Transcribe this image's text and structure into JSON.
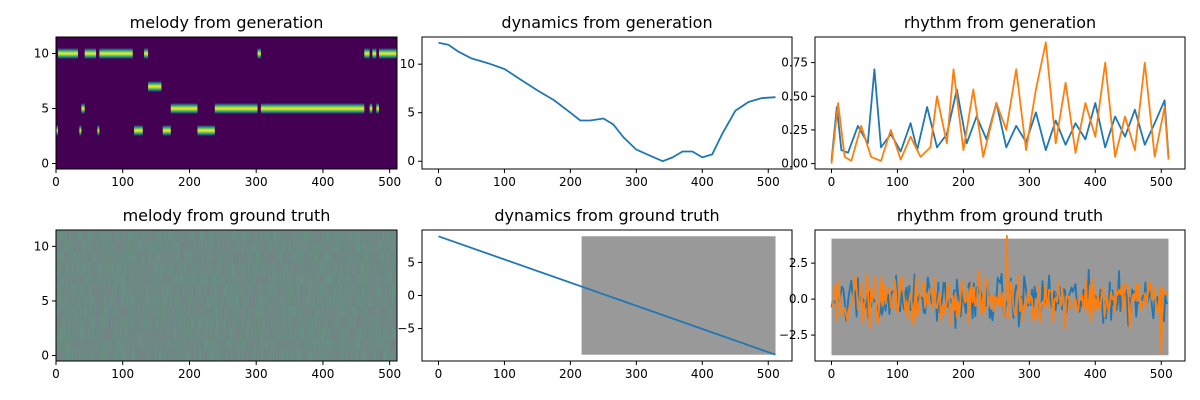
{
  "figure": {
    "colors": {
      "series1": "#1f77b4",
      "series2": "#ff7f0e",
      "shade": "#999999",
      "viridis_low": "#440154",
      "viridis_mid": "#21918c",
      "viridis_high": "#fde725",
      "noise_base": "#6e8a84"
    }
  },
  "chart_data": [
    {
      "id": "melody-generation",
      "type": "heatmap",
      "title": "melody from generation",
      "xlim": [
        0,
        511
      ],
      "ylim": [
        -0.5,
        11.5
      ],
      "xticks": [
        0,
        100,
        200,
        300,
        400,
        500
      ],
      "yticks": [
        0,
        5,
        10
      ],
      "grid": false,
      "segments": [
        {
          "x0": 0,
          "x1": 3,
          "pitch": 3
        },
        {
          "x0": 3,
          "x1": 33,
          "pitch": 10
        },
        {
          "x0": 35,
          "x1": 38,
          "pitch": 3
        },
        {
          "x0": 38,
          "x1": 43,
          "pitch": 5
        },
        {
          "x0": 43,
          "x1": 60,
          "pitch": 10
        },
        {
          "x0": 62,
          "x1": 65,
          "pitch": 3
        },
        {
          "x0": 65,
          "x1": 115,
          "pitch": 10
        },
        {
          "x0": 117,
          "x1": 130,
          "pitch": 3
        },
        {
          "x0": 132,
          "x1": 138,
          "pitch": 10
        },
        {
          "x0": 138,
          "x1": 158,
          "pitch": 7
        },
        {
          "x0": 160,
          "x1": 172,
          "pitch": 3
        },
        {
          "x0": 172,
          "x1": 212,
          "pitch": 5
        },
        {
          "x0": 212,
          "x1": 238,
          "pitch": 3
        },
        {
          "x0": 238,
          "x1": 302,
          "pitch": 5
        },
        {
          "x0": 302,
          "x1": 307,
          "pitch": 10
        },
        {
          "x0": 307,
          "x1": 462,
          "pitch": 5
        },
        {
          "x0": 462,
          "x1": 470,
          "pitch": 10
        },
        {
          "x0": 470,
          "x1": 474,
          "pitch": 5
        },
        {
          "x0": 474,
          "x1": 480,
          "pitch": 10
        },
        {
          "x0": 480,
          "x1": 484,
          "pitch": 5
        },
        {
          "x0": 484,
          "x1": 511,
          "pitch": 10
        }
      ]
    },
    {
      "id": "dynamics-generation",
      "type": "line",
      "title": "dynamics from generation",
      "xlim": [
        -25,
        536
      ],
      "ylim": [
        -0.8,
        12.8
      ],
      "xticks": [
        0,
        100,
        200,
        300,
        400,
        500
      ],
      "yticks": [
        0,
        5,
        10
      ],
      "grid": false,
      "series": [
        {
          "x": [
            0,
            15,
            30,
            50,
            75,
            100,
            125,
            150,
            175,
            200,
            215,
            230,
            250,
            265,
            280,
            300,
            320,
            340,
            355,
            370,
            385,
            400,
            415,
            430,
            450,
            470,
            490,
            511
          ],
          "y": [
            12.2,
            12.0,
            11.3,
            10.6,
            10.1,
            9.5,
            8.4,
            7.3,
            6.3,
            5.0,
            4.2,
            4.2,
            4.4,
            3.8,
            2.5,
            1.2,
            0.6,
            0.0,
            0.4,
            1.0,
            1.0,
            0.4,
            0.7,
            2.8,
            5.2,
            6.1,
            6.5,
            6.6
          ]
        }
      ]
    },
    {
      "id": "rhythm-generation",
      "type": "line",
      "title": "rhythm from generation",
      "xlim": [
        -25,
        536
      ],
      "ylim": [
        -0.04,
        0.94
      ],
      "xticks": [
        0,
        100,
        200,
        300,
        400,
        500
      ],
      "yticks": [
        0.0,
        0.25,
        0.5,
        0.75
      ],
      "tick_labels_y": [
        "0.00",
        "0.25",
        "0.50",
        "0.75"
      ],
      "grid": false,
      "series": [
        {
          "x": [
            0,
            8,
            15,
            25,
            40,
            55,
            65,
            75,
            90,
            105,
            120,
            130,
            145,
            160,
            175,
            190,
            205,
            220,
            235,
            250,
            265,
            280,
            295,
            310,
            325,
            340,
            355,
            370,
            385,
            400,
            415,
            430,
            445,
            460,
            475,
            490,
            505,
            511
          ],
          "y": [
            0.02,
            0.42,
            0.1,
            0.08,
            0.28,
            0.15,
            0.7,
            0.12,
            0.22,
            0.09,
            0.3,
            0.1,
            0.42,
            0.12,
            0.22,
            0.55,
            0.15,
            0.35,
            0.18,
            0.45,
            0.12,
            0.28,
            0.16,
            0.38,
            0.1,
            0.32,
            0.14,
            0.3,
            0.18,
            0.45,
            0.12,
            0.35,
            0.2,
            0.4,
            0.14,
            0.3,
            0.47,
            0.05
          ]
        },
        {
          "x": [
            0,
            10,
            20,
            30,
            45,
            60,
            75,
            90,
            105,
            120,
            135,
            150,
            160,
            175,
            185,
            200,
            215,
            230,
            250,
            265,
            280,
            295,
            310,
            325,
            340,
            355,
            370,
            385,
            400,
            415,
            430,
            445,
            460,
            475,
            490,
            505,
            511
          ],
          "y": [
            0.0,
            0.45,
            0.05,
            0.02,
            0.28,
            0.05,
            0.02,
            0.25,
            0.03,
            0.2,
            0.05,
            0.12,
            0.5,
            0.15,
            0.7,
            0.1,
            0.55,
            0.05,
            0.45,
            0.25,
            0.7,
            0.1,
            0.55,
            0.9,
            0.15,
            0.6,
            0.08,
            0.45,
            0.2,
            0.75,
            0.05,
            0.35,
            0.1,
            0.75,
            0.05,
            0.42,
            0.03
          ]
        }
      ]
    },
    {
      "id": "melody-ground-truth",
      "type": "heatmap",
      "title": "melody from ground truth",
      "xlim": [
        0,
        511
      ],
      "ylim": [
        -0.5,
        11.5
      ],
      "xticks": [
        0,
        100,
        200,
        300,
        400,
        500
      ],
      "yticks": [
        0,
        5,
        10
      ],
      "grid": false
    },
    {
      "id": "dynamics-ground-truth",
      "type": "line",
      "title": "dynamics from ground truth",
      "xlim": [
        -25,
        536
      ],
      "ylim": [
        -9.9,
        9.9
      ],
      "xticks": [
        0,
        100,
        200,
        300,
        400,
        500
      ],
      "yticks": [
        -5,
        0,
        5
      ],
      "grid": false,
      "shaded_region": {
        "x0": 217,
        "x1": 511,
        "y0": -8.95,
        "y1": 8.95
      },
      "series": [
        {
          "x": [
            0,
            511
          ],
          "y": [
            8.95,
            -8.95
          ]
        }
      ]
    },
    {
      "id": "rhythm-ground-truth",
      "type": "line",
      "title": "rhythm from ground truth",
      "xlim": [
        -25,
        536
      ],
      "ylim": [
        -4.3,
        4.8
      ],
      "xticks": [
        0,
        100,
        200,
        300,
        400,
        500
      ],
      "yticks": [
        -2.5,
        0.0,
        2.5
      ],
      "tick_labels_y": [
        "−2.5",
        "0.0",
        "2.5"
      ],
      "grid": false,
      "shaded_region": {
        "x0": 0,
        "x1": 511,
        "y0": -3.9,
        "y1": 4.2
      },
      "noise_range": [
        -3.2,
        4.4
      ],
      "series": [
        {},
        {}
      ]
    }
  ]
}
